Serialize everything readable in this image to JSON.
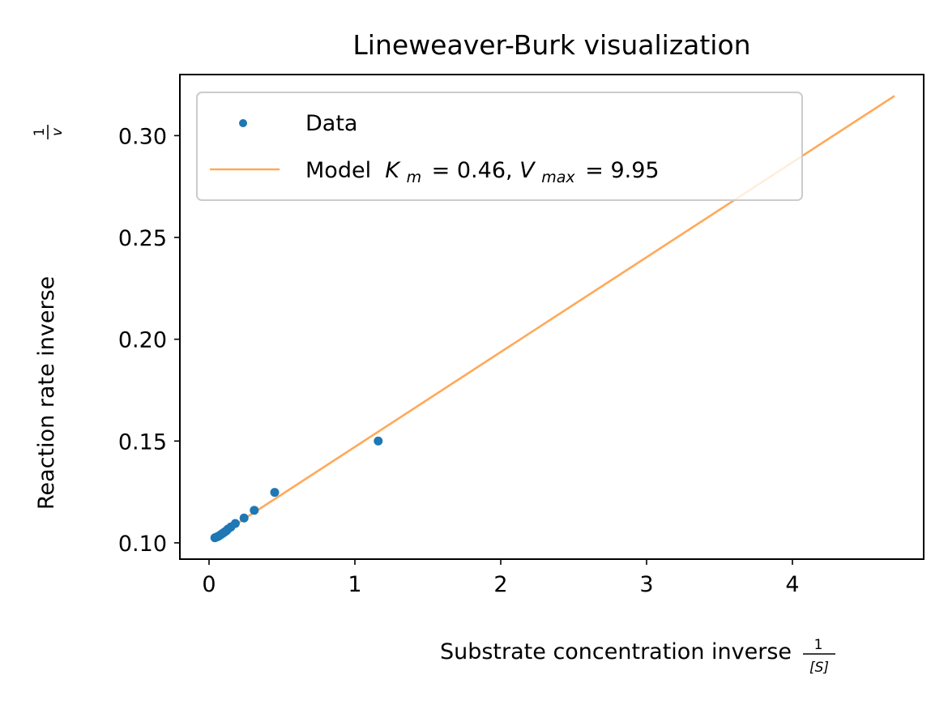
{
  "chart_data": {
    "type": "scatter",
    "title": "Lineweaver-Burk visualization",
    "xlabel": "Substrate concentration inverse",
    "xlabel_math": {
      "numerator": "1",
      "denominator": "[S]"
    },
    "ylabel": "Reaction rate inverse",
    "ylabel_math": {
      "numerator": "1",
      "denominator": "v"
    },
    "xlim": [
      -0.2,
      4.9
    ],
    "ylim": [
      0.092,
      0.33
    ],
    "xticks": [
      0,
      1,
      2,
      3,
      4
    ],
    "xtick_labels": [
      "0",
      "1",
      "2",
      "3",
      "4"
    ],
    "yticks": [
      0.1,
      0.15,
      0.2,
      0.25,
      0.3
    ],
    "ytick_labels": [
      "0.10",
      "0.15",
      "0.20",
      "0.25",
      "0.30"
    ],
    "grid": false,
    "legend_position": "top-left",
    "series": [
      {
        "name": "Data",
        "kind": "scatter",
        "color": "#1f77b4",
        "x": [
          0.04,
          0.05,
          0.06,
          0.07,
          0.08,
          0.09,
          0.1,
          0.11,
          0.12,
          0.13,
          0.15,
          0.18,
          0.24,
          0.31,
          0.45,
          1.16
        ],
        "y": [
          0.1025,
          0.1028,
          0.1031,
          0.1035,
          0.104,
          0.1045,
          0.105,
          0.1055,
          0.106,
          0.1068,
          0.1078,
          0.1095,
          0.1122,
          0.116,
          0.1248,
          0.15
        ]
      },
      {
        "name": "Model",
        "legend_label": {
          "prefix": "Model ",
          "km_symbol": "K",
          "km_sub": "m",
          "km_value": "= 0.46,",
          "vmax_symbol": "V",
          "vmax_sub": "max",
          "vmax_value": "= 9.95"
        },
        "kind": "line",
        "color": "#ffa95a",
        "x": [
          0.04,
          4.7
        ],
        "y": [
          0.1024,
          0.3195
        ]
      }
    ]
  }
}
